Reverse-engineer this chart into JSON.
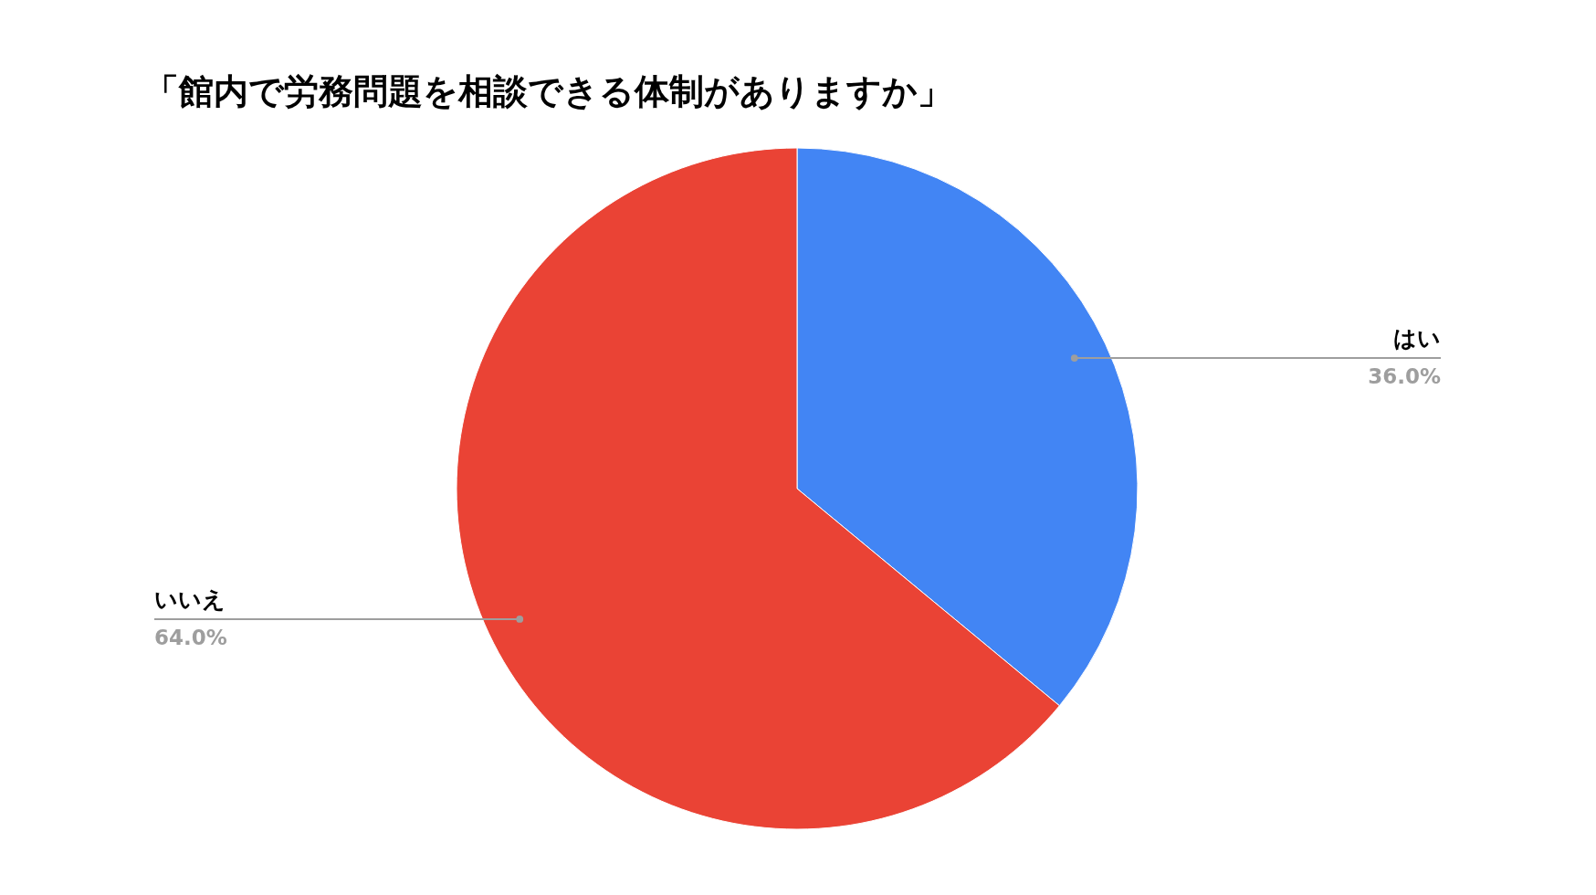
{
  "chart_data": {
    "type": "pie",
    "title": "「館内で労務問題を相談できる体制がありますか」",
    "categories": [
      "はい",
      "いいえ"
    ],
    "values": [
      36.0,
      64.0
    ],
    "colors": [
      "#4285f4",
      "#ea4335"
    ],
    "value_labels": [
      "36.0%",
      "64.0%"
    ]
  }
}
